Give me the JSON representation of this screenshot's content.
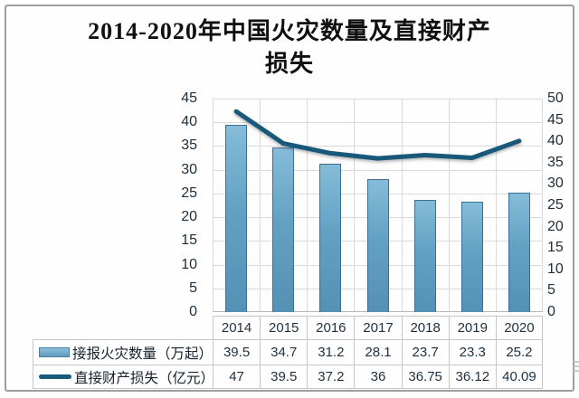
{
  "title": {
    "text": "2014-2020年中国火灾数量及直接财产损失",
    "line1": "2014-2020年中国火灾数量及直接财产",
    "line2": "损失"
  },
  "chart_data": {
    "type": "combo",
    "title": "2014-2020年中国火灾数量及直接财产损失",
    "categories": [
      "2014",
      "2015",
      "2016",
      "2017",
      "2018",
      "2019",
      "2020"
    ],
    "series": [
      {
        "name": "接报火灾数量（万起）",
        "type": "bar",
        "axis": "left",
        "values": [
          39.5,
          34.7,
          31.2,
          28.1,
          23.7,
          23.3,
          25.2
        ],
        "color": "#63a1c4"
      },
      {
        "name": "直接财产损失（亿元）",
        "type": "line",
        "axis": "right",
        "values": [
          47,
          39.5,
          37.2,
          36,
          36.75,
          36.12,
          40.09
        ],
        "color": "#17587b"
      }
    ],
    "axes": {
      "left": {
        "min": 0,
        "max": 45,
        "step": 5,
        "ticks": [
          45,
          40,
          35,
          30,
          25,
          20,
          15,
          10,
          5,
          0
        ]
      },
      "right": {
        "min": 0,
        "max": 50,
        "step": 5,
        "ticks": [
          50,
          45,
          40,
          35,
          30,
          25,
          20,
          15,
          10,
          5,
          0
        ]
      }
    },
    "grid": true,
    "legend_position": "bottom-table-left"
  },
  "colors": {
    "bar_fill_top": "#85bcd8",
    "bar_fill_bottom": "#5590b5",
    "bar_border": "#3c6f93",
    "line": "#17587b",
    "gridline": "#dadada",
    "axis_text": "#1d2d3a",
    "table_border": "#c6c6c6",
    "card_border": "#9e9e9e"
  }
}
